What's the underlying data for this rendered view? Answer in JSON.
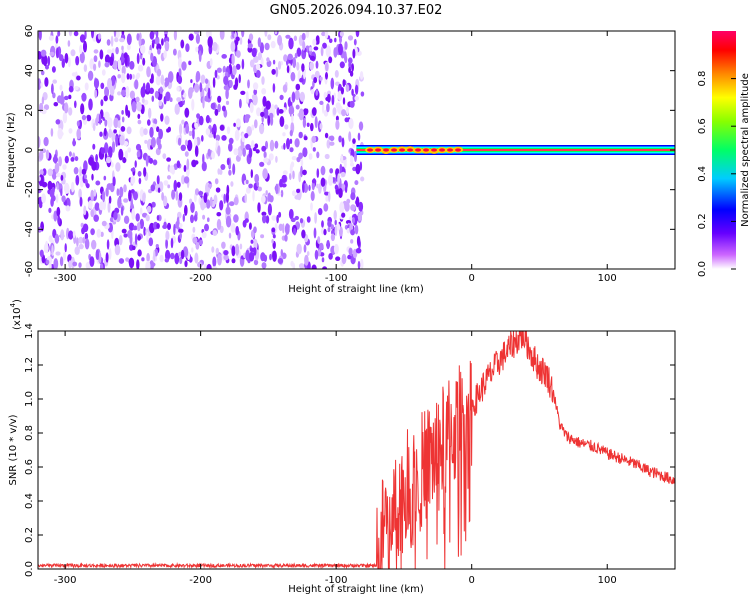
{
  "title": "GN05.2026.094.10.37.E02",
  "chart_data": [
    {
      "type": "heatmap",
      "xlabel": "Height of straight line (km)",
      "ylabel": "Frequency (Hz)",
      "xlim": [
        -320,
        150
      ],
      "ylim": [
        -60,
        60
      ],
      "x_ticks": [
        -300,
        -200,
        -100,
        0,
        100
      ],
      "y_ticks": [
        -60,
        -40,
        -20,
        0,
        20,
        40,
        60
      ],
      "noise_region_x": [
        -320,
        -82
      ],
      "signal": {
        "frequency": 0,
        "x_start": -85,
        "x_end": 150,
        "peak_segment_x": [
          -75,
          -10
        ]
      },
      "colorbar": {
        "label": "Normalized spectral amplitude",
        "range": [
          0.0,
          1.0
        ],
        "ticks": [
          "0.0",
          "0.2",
          "0.4",
          "0.6",
          "0.8"
        ],
        "colors": [
          "#ffffff",
          "#9900ff",
          "#0000ff",
          "#00ffff",
          "#00ff00",
          "#ffff00",
          "#ff8800",
          "#ff0000",
          "#ff0066"
        ]
      },
      "grid": false
    },
    {
      "type": "line",
      "xlabel": "Height of straight line (km)",
      "ylabel": "SNR (10 * v/v)",
      "y_multiplier": "(x10",
      "y_multiplier_exp": "4",
      "y_multiplier_close": ")",
      "xlim": [
        -320,
        150
      ],
      "ylim": [
        0,
        1.4
      ],
      "x_ticks": [
        -300,
        -200,
        -100,
        0,
        100
      ],
      "y_ticks": [
        "0.0",
        "0.2",
        "0.4",
        "0.6",
        "0.8",
        "1.0",
        "1.2",
        "1.4"
      ],
      "line_color": "#ee3333",
      "envelope": {
        "x": [
          -320,
          -70,
          -65,
          -60,
          -50,
          -40,
          -30,
          -20,
          -10,
          0,
          10,
          20,
          30,
          38,
          45,
          50,
          55,
          60,
          65,
          70,
          80,
          90,
          100,
          110,
          120,
          130,
          140,
          150
        ],
        "y": [
          0.02,
          0.02,
          0.25,
          0.35,
          0.45,
          0.55,
          0.65,
          0.75,
          0.85,
          0.95,
          1.1,
          1.22,
          1.32,
          1.38,
          1.25,
          1.18,
          1.15,
          1.05,
          0.85,
          0.78,
          0.74,
          0.72,
          0.68,
          0.65,
          0.62,
          0.58,
          0.55,
          0.52
        ]
      },
      "grid": false
    }
  ]
}
